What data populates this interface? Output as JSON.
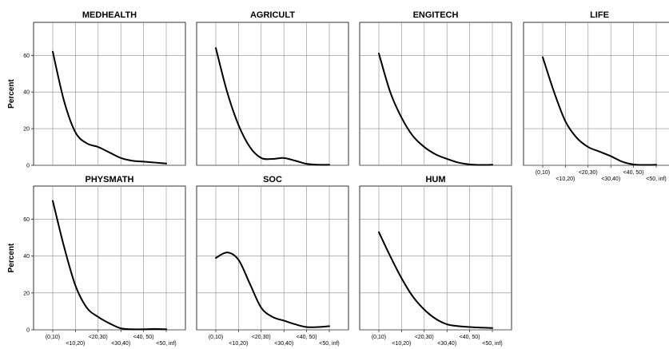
{
  "chart_data": {
    "type": "line",
    "layout": "small-multiples",
    "ylabel": "Percent",
    "ylim": [
      0,
      78
    ],
    "y_ticks": [
      "0",
      "20",
      "40",
      "60"
    ],
    "y_tick_values": [
      0,
      20,
      40,
      60
    ],
    "categories_upper": [
      "(0,10)",
      "<20,30)",
      "<40, 50)"
    ],
    "categories_lower": [
      "<10,20)",
      "<30,40)",
      "<50, inf)"
    ],
    "x": [
      0,
      1,
      2,
      3,
      4,
      5
    ],
    "grid": true,
    "panels": [
      {
        "title": "MEDHEALTH",
        "points": [
          [
            0,
            62
          ],
          [
            0.5,
            35
          ],
          [
            1,
            18
          ],
          [
            1.5,
            12
          ],
          [
            2,
            10
          ],
          [
            2.5,
            7
          ],
          [
            3,
            4
          ],
          [
            3.5,
            2.5
          ],
          [
            4,
            2
          ],
          [
            4.5,
            1.5
          ],
          [
            5,
            1
          ]
        ]
      },
      {
        "title": "AGRICULT",
        "points": [
          [
            0,
            64
          ],
          [
            0.5,
            40
          ],
          [
            1,
            22
          ],
          [
            1.5,
            10
          ],
          [
            2,
            4
          ],
          [
            2.5,
            3.5
          ],
          [
            3,
            4
          ],
          [
            3.5,
            2.5
          ],
          [
            4,
            0.8
          ],
          [
            4.5,
            0.3
          ],
          [
            5,
            0.3
          ]
        ]
      },
      {
        "title": "ENGITECH",
        "points": [
          [
            0,
            61
          ],
          [
            0.5,
            40
          ],
          [
            1,
            26
          ],
          [
            1.5,
            16
          ],
          [
            2,
            10
          ],
          [
            2.5,
            6
          ],
          [
            3,
            3.5
          ],
          [
            3.5,
            1.5
          ],
          [
            4,
            0.5
          ],
          [
            4.5,
            0.2
          ],
          [
            5,
            0.3
          ]
        ]
      },
      {
        "title": "LIFE",
        "points": [
          [
            0,
            59
          ],
          [
            0.5,
            40
          ],
          [
            1,
            24
          ],
          [
            1.5,
            15
          ],
          [
            2,
            10
          ],
          [
            2.5,
            7.5
          ],
          [
            3,
            5
          ],
          [
            3.5,
            2
          ],
          [
            4,
            0.5
          ],
          [
            4.5,
            0.2
          ],
          [
            5,
            0.3
          ]
        ]
      },
      {
        "title": "PHYSMATH",
        "points": [
          [
            0,
            70
          ],
          [
            0.5,
            45
          ],
          [
            1,
            24
          ],
          [
            1.5,
            12
          ],
          [
            2,
            7
          ],
          [
            2.5,
            3.5
          ],
          [
            3,
            0.8
          ],
          [
            3.5,
            0.3
          ],
          [
            4,
            0.3
          ],
          [
            4.5,
            0.5
          ],
          [
            5,
            0.3
          ]
        ]
      },
      {
        "title": "SOC",
        "points": [
          [
            0,
            39
          ],
          [
            0.5,
            42
          ],
          [
            1,
            38
          ],
          [
            1.5,
            25
          ],
          [
            2,
            12
          ],
          [
            2.5,
            7
          ],
          [
            3,
            5
          ],
          [
            3.5,
            3
          ],
          [
            4,
            1.5
          ],
          [
            4.5,
            1.5
          ],
          [
            5,
            2
          ]
        ]
      },
      {
        "title": "HUM",
        "points": [
          [
            0,
            53
          ],
          [
            0.5,
            40
          ],
          [
            1,
            28
          ],
          [
            1.5,
            18
          ],
          [
            2,
            11
          ],
          [
            2.5,
            6
          ],
          [
            3,
            3
          ],
          [
            3.5,
            2
          ],
          [
            4,
            1.5
          ],
          [
            4.5,
            1.2
          ],
          [
            5,
            1
          ]
        ]
      }
    ]
  }
}
